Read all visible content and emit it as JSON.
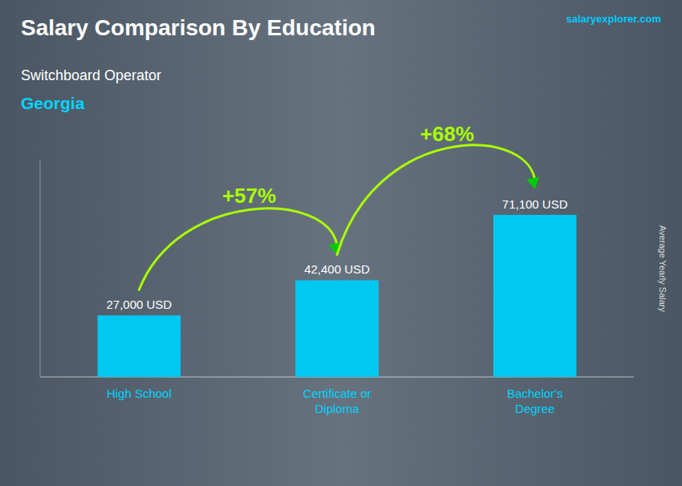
{
  "chart_data": {
    "type": "bar",
    "title": "Salary Comparison By Education",
    "subtitle": "Switchboard Operator",
    "location": "Georgia",
    "source": "salaryexplorer.com",
    "ylabel": "Average Yearly Salary",
    "categories": [
      "High School",
      "Certificate or\nDiploma",
      "Bachelor's\nDegree"
    ],
    "values": [
      27000,
      42400,
      71100
    ],
    "value_labels": [
      "27,000 USD",
      "42,400 USD",
      "71,100 USD"
    ],
    "data_labels": true,
    "change_labels": [
      "+57%",
      "+68%"
    ],
    "color": "#00c8f0",
    "ylim": [
      0,
      95000
    ],
    "grid": false,
    "tick_labels": "x"
  }
}
